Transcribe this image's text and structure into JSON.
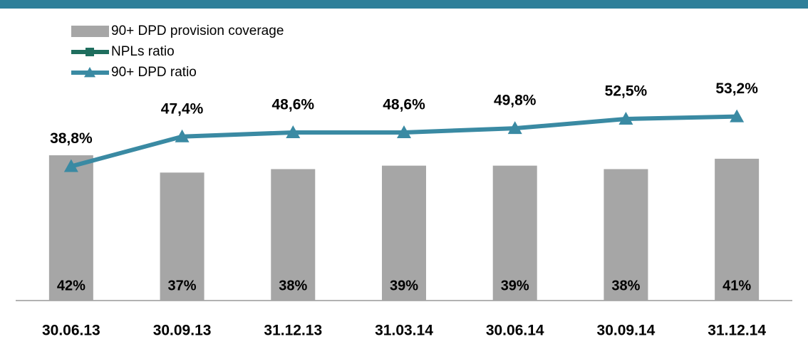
{
  "chart_data": {
    "type": "bar_line",
    "categories": [
      "30.06.13",
      "30.09.13",
      "31.12.13",
      "31.03.14",
      "30.06.14",
      "30.09.14",
      "31.12.14"
    ],
    "ylim": [
      0,
      60
    ],
    "series": [
      {
        "name": "90+ DPD provision coverage",
        "type": "bar",
        "color": "#a6a6a6",
        "values": [
          42,
          37,
          38,
          39,
          39,
          38,
          41
        ],
        "value_labels": [
          "42%",
          "37%",
          "38%",
          "39%",
          "39%",
          "38%",
          "41%"
        ]
      },
      {
        "name": "NPLs ratio",
        "type": "line",
        "color": "#1f6e5e",
        "values": [
          null,
          null,
          null,
          null,
          null,
          null,
          null
        ]
      },
      {
        "name": "90+ DPD ratio",
        "type": "line",
        "color": "#3a8aa3",
        "values": [
          38.8,
          47.4,
          48.6,
          48.6,
          49.8,
          52.5,
          53.2
        ],
        "value_labels": [
          "38,8%",
          "47,4%",
          "48,6%",
          "48,6%",
          "49,8%",
          "52,5%",
          "53,2%"
        ]
      }
    ]
  }
}
